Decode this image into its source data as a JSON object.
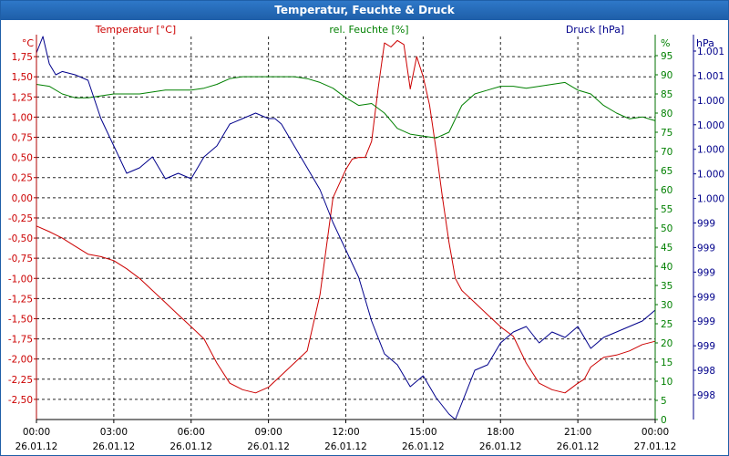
{
  "chart_data": {
    "type": "line",
    "title": "Temperatur, Feuchte & Druck",
    "x_tick_labels": [
      {
        "time": "00:00",
        "date": "26.01.12"
      },
      {
        "time": "03:00",
        "date": "26.01.12"
      },
      {
        "time": "06:00",
        "date": "26.01.12"
      },
      {
        "time": "09:00",
        "date": "26.01.12"
      },
      {
        "time": "12:00",
        "date": "26.01.12"
      },
      {
        "time": "15:00",
        "date": "26.01.12"
      },
      {
        "time": "18:00",
        "date": "26.01.12"
      },
      {
        "time": "21:00",
        "date": "26.01.12"
      },
      {
        "time": "00:00",
        "date": "27.01.12"
      }
    ],
    "xlim_hours": [
      0,
      24
    ],
    "axes": {
      "temperature": {
        "label": "Temperatur [°C]",
        "unit": "°C",
        "color": "#cc0000",
        "ylim": [
          -2.75,
          2.0
        ],
        "ticks": [
          "1,75",
          "1,50",
          "1,25",
          "1,00",
          "0,75",
          "0,50",
          "0,25",
          "0,00",
          "-0,25",
          "-0,50",
          "-0,75",
          "-1,00",
          "-1,25",
          "-1,50",
          "-1,75",
          "-2,00",
          "-2,25",
          "-2,50"
        ],
        "tick_values": [
          1.75,
          1.5,
          1.25,
          1.0,
          0.75,
          0.5,
          0.25,
          0.0,
          -0.25,
          -0.5,
          -0.75,
          -1.0,
          -1.25,
          -1.5,
          -1.75,
          -2.0,
          -2.25,
          -2.5
        ]
      },
      "humidity": {
        "label": "rel. Feuchte [%]",
        "unit": "%",
        "color": "#008000",
        "ylim": [
          0,
          100
        ],
        "ticks": [
          "95",
          "90",
          "85",
          "80",
          "75",
          "70",
          "65",
          "60",
          "55",
          "50",
          "45",
          "40",
          "35",
          "30",
          "25",
          "20",
          "15",
          "10",
          "5",
          "0"
        ],
        "tick_values": [
          95,
          90,
          85,
          80,
          75,
          70,
          65,
          60,
          55,
          50,
          45,
          40,
          35,
          30,
          25,
          20,
          15,
          10,
          5,
          0
        ]
      },
      "pressure": {
        "label": "Druck [hPa]",
        "unit": "hPa",
        "color": "#00008b",
        "ylim": [
          997.8,
          1001.3
        ],
        "ticks": [
          "1.001",
          "1.001",
          "1.000",
          "1.000",
          "1.000",
          "1.000",
          "1.000",
          "999",
          "999",
          "999",
          "999",
          "999",
          "999",
          "998",
          "998"
        ]
      }
    },
    "series": [
      {
        "name": "Temperatur",
        "axis": "temperature",
        "color": "#cc0000",
        "x": [
          0,
          0.5,
          1,
          1.5,
          2,
          2.5,
          3,
          3.5,
          4,
          4.5,
          5,
          5.5,
          6,
          6.5,
          7,
          7.5,
          8,
          8.5,
          9,
          9.5,
          10,
          10.5,
          11,
          11.5,
          12,
          12.25,
          12.5,
          12.75,
          13,
          13.25,
          13.5,
          13.75,
          14,
          14.25,
          14.5,
          14.75,
          15,
          15.25,
          15.5,
          15.75,
          16,
          16.25,
          16.5,
          17,
          17.5,
          18,
          18.5,
          19,
          19.5,
          20,
          20.5,
          21,
          21.25,
          21.5,
          22,
          22.5,
          23,
          23.5,
          24
        ],
        "values": [
          -0.35,
          -0.42,
          -0.5,
          -0.6,
          -0.7,
          -0.73,
          -0.78,
          -0.88,
          -1.0,
          -1.15,
          -1.3,
          -1.45,
          -1.6,
          -1.75,
          -2.05,
          -2.3,
          -2.38,
          -2.42,
          -2.35,
          -2.2,
          -2.05,
          -1.9,
          -1.2,
          0.0,
          0.35,
          0.48,
          0.5,
          0.5,
          0.7,
          1.35,
          1.92,
          1.87,
          1.95,
          1.9,
          1.35,
          1.75,
          1.5,
          1.15,
          0.6,
          0.0,
          -0.55,
          -1.0,
          -1.15,
          -1.3,
          -1.45,
          -1.6,
          -1.72,
          -2.05,
          -2.3,
          -2.38,
          -2.42,
          -2.3,
          -2.25,
          -2.1,
          -1.98,
          -1.95,
          -1.9,
          -1.82,
          -1.78
        ]
      },
      {
        "name": "rel. Feuchte",
        "axis": "humidity",
        "color": "#008000",
        "x": [
          0,
          0.5,
          1,
          1.5,
          2,
          2.5,
          3,
          3.5,
          4,
          4.5,
          5,
          5.5,
          6,
          6.5,
          7,
          7.5,
          8,
          8.5,
          9,
          9.5,
          10,
          10.5,
          11,
          11.5,
          12,
          12.5,
          13,
          13.5,
          14,
          14.5,
          15,
          15.5,
          16,
          16.5,
          17,
          17.5,
          18,
          18.5,
          19,
          19.5,
          20,
          20.5,
          21,
          21.5,
          22,
          22.5,
          23,
          23.5,
          24
        ],
        "values": [
          87.5,
          87,
          85,
          84,
          84,
          84.5,
          85,
          85,
          85,
          85.5,
          86,
          86,
          86,
          86.5,
          87.5,
          89,
          89.5,
          89.5,
          89.5,
          89.5,
          89.5,
          89,
          88,
          86.5,
          84,
          82,
          82.5,
          80,
          76,
          74.5,
          74,
          73.5,
          75,
          82,
          85,
          86,
          87,
          87,
          86.5,
          87,
          87.5,
          88,
          86,
          85,
          82,
          80,
          78.5,
          79,
          78
        ]
      },
      {
        "name": "Druck",
        "axis": "pressure",
        "color": "#00008b",
        "x": [
          0,
          0.25,
          0.5,
          0.75,
          1,
          1.5,
          2,
          2.5,
          3,
          3.5,
          4,
          4.5,
          5,
          5.5,
          6,
          6.5,
          7,
          7.5,
          8,
          8.5,
          9,
          9.25,
          9.5,
          10,
          10.5,
          11,
          11.5,
          12,
          12.5,
          13,
          13.5,
          14,
          14.5,
          15,
          15.5,
          16,
          16.25,
          16.5,
          17,
          17.5,
          18,
          18.5,
          19,
          19.5,
          20,
          20.5,
          21,
          21.5,
          22,
          22.5,
          23,
          23.5,
          24
        ],
        "values": [
          1001.15,
          1001.3,
          1001.05,
          1000.95,
          1000.98,
          1000.95,
          1000.9,
          1000.55,
          1000.3,
          1000.05,
          1000.1,
          1000.2,
          1000.0,
          1000.05,
          1000.0,
          1000.2,
          1000.3,
          1000.5,
          1000.55,
          1000.6,
          1000.55,
          1000.55,
          1000.5,
          1000.3,
          1000.1,
          999.9,
          999.6,
          999.35,
          999.1,
          998.7,
          998.4,
          998.3,
          998.1,
          998.2,
          998.0,
          997.85,
          997.8,
          997.95,
          998.25,
          998.3,
          998.5,
          998.6,
          998.65,
          998.5,
          998.6,
          998.55,
          998.65,
          998.45,
          998.55,
          998.6,
          998.65,
          998.7,
          998.8
        ]
      }
    ]
  }
}
